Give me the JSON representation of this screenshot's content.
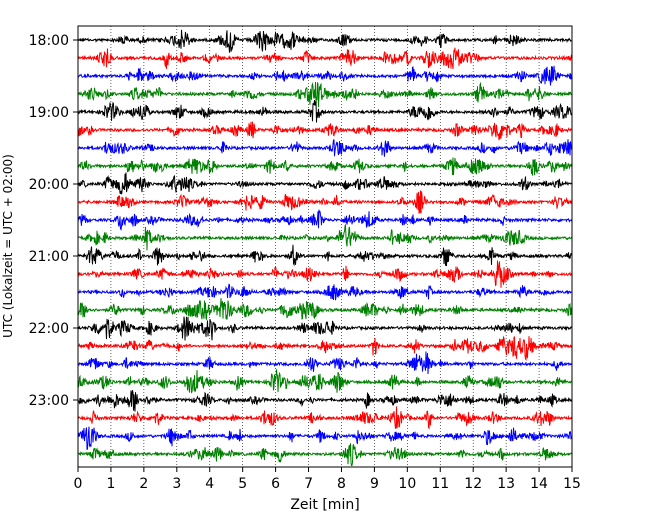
{
  "chart_data": {
    "type": "line",
    "title": "",
    "xlabel": "Zeit  [min]",
    "ylabel": "UTC (Lokalzeit = UTC + 02:00)",
    "xlim": [
      0,
      15
    ],
    "x_ticks": [
      0,
      1,
      2,
      3,
      4,
      5,
      6,
      7,
      8,
      9,
      10,
      11,
      12,
      13,
      14,
      15
    ],
    "x_tick_labels": [
      "0",
      "1",
      "2",
      "3",
      "4",
      "5",
      "6",
      "7",
      "8",
      "9",
      "10",
      "11",
      "12",
      "13",
      "14",
      "15"
    ],
    "y_ticks": [
      "18:00",
      "19:00",
      "20:00",
      "21:00",
      "22:00",
      "23:00"
    ],
    "grid": "vertical dotted at each minute",
    "description": "Seismogram helicorder: 24 traces of 15 minutes each, from 18:00 to 23:45 UTC, colors cycling black, red, blue, green",
    "trace_colors": [
      "#000000",
      "#ff0000",
      "#0000ff",
      "#008000"
    ],
    "rows": [
      {
        "start": "18:00",
        "color": "#000000"
      },
      {
        "start": "18:15",
        "color": "#ff0000"
      },
      {
        "start": "18:30",
        "color": "#0000ff"
      },
      {
        "start": "18:45",
        "color": "#008000"
      },
      {
        "start": "19:00",
        "color": "#000000"
      },
      {
        "start": "19:15",
        "color": "#ff0000"
      },
      {
        "start": "19:30",
        "color": "#0000ff"
      },
      {
        "start": "19:45",
        "color": "#008000"
      },
      {
        "start": "20:00",
        "color": "#000000"
      },
      {
        "start": "20:15",
        "color": "#ff0000"
      },
      {
        "start": "20:30",
        "color": "#0000ff"
      },
      {
        "start": "20:45",
        "color": "#008000"
      },
      {
        "start": "21:00",
        "color": "#000000"
      },
      {
        "start": "21:15",
        "color": "#ff0000"
      },
      {
        "start": "21:30",
        "color": "#0000ff"
      },
      {
        "start": "21:45",
        "color": "#008000"
      },
      {
        "start": "22:00",
        "color": "#000000"
      },
      {
        "start": "22:15",
        "color": "#ff0000"
      },
      {
        "start": "22:30",
        "color": "#0000ff"
      },
      {
        "start": "22:45",
        "color": "#008000"
      },
      {
        "start": "23:00",
        "color": "#000000"
      },
      {
        "start": "23:15",
        "color": "#ff0000"
      },
      {
        "start": "23:30",
        "color": "#0000ff"
      },
      {
        "start": "23:45",
        "color": "#008000"
      }
    ]
  }
}
